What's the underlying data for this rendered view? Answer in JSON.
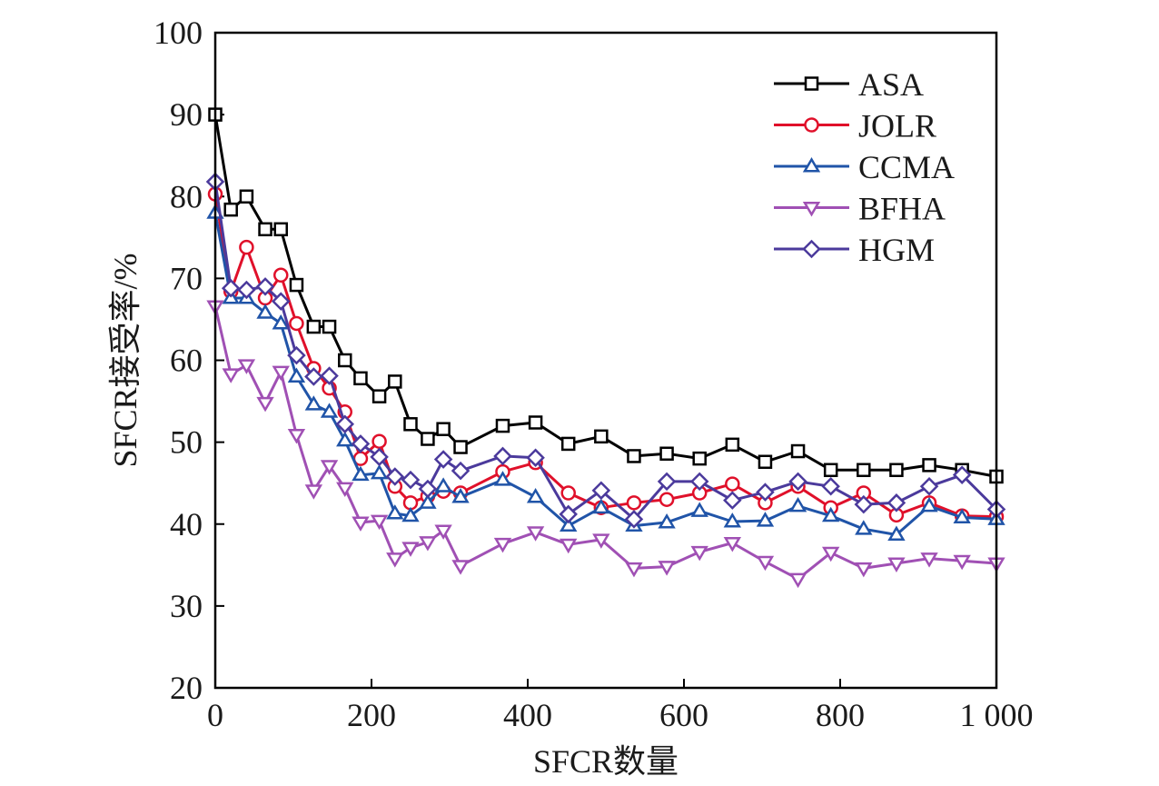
{
  "chart_data": {
    "type": "line",
    "title": "",
    "xlabel": "SFCR数量",
    "ylabel": "SFCR接受率/%",
    "xlim": [
      0,
      1000
    ],
    "ylim": [
      20,
      100
    ],
    "grid": false,
    "legend_position": "top-right",
    "x_ticks": [
      {
        "value": 0,
        "label": "0"
      },
      {
        "value": 200,
        "label": "200"
      },
      {
        "value": 400,
        "label": "400"
      },
      {
        "value": 600,
        "label": "600"
      },
      {
        "value": 800,
        "label": "800"
      },
      {
        "value": 1000,
        "label": "1 000"
      }
    ],
    "y_ticks": [
      {
        "value": 20,
        "label": "20"
      },
      {
        "value": 30,
        "label": "30"
      },
      {
        "value": 40,
        "label": "40"
      },
      {
        "value": 50,
        "label": "50"
      },
      {
        "value": 60,
        "label": "60"
      },
      {
        "value": 70,
        "label": "70"
      },
      {
        "value": 80,
        "label": "80"
      },
      {
        "value": 90,
        "label": "90"
      },
      {
        "value": 100,
        "label": "100"
      }
    ],
    "series": [
      {
        "name": "ASA",
        "color": "#000000",
        "marker": "square",
        "points": [
          [
            0,
            90
          ],
          [
            20,
            78.4
          ],
          [
            40,
            80
          ],
          [
            64,
            76
          ],
          [
            84,
            76
          ],
          [
            104,
            69.2
          ],
          [
            126,
            64.1
          ],
          [
            146,
            64.1
          ],
          [
            166,
            60
          ],
          [
            186,
            57.8
          ],
          [
            210,
            55.6
          ],
          [
            230,
            57.4
          ],
          [
            250,
            52.2
          ],
          [
            272,
            50.4
          ],
          [
            292,
            51.6
          ],
          [
            314,
            49.4
          ],
          [
            368,
            52
          ],
          [
            410,
            52.4
          ],
          [
            452,
            49.8
          ],
          [
            494,
            50.7
          ],
          [
            536,
            48.3
          ],
          [
            578,
            48.6
          ],
          [
            620,
            48
          ],
          [
            662,
            49.7
          ],
          [
            704,
            47.6
          ],
          [
            746,
            48.9
          ],
          [
            788,
            46.6
          ],
          [
            830,
            46.6
          ],
          [
            872,
            46.6
          ],
          [
            914,
            47.2
          ],
          [
            956,
            46.6
          ],
          [
            1000,
            45.8
          ]
        ]
      },
      {
        "name": "JOLR",
        "color": "#e0102a",
        "marker": "circle",
        "points": [
          [
            0,
            80.3
          ],
          [
            20,
            68.4
          ],
          [
            40,
            73.8
          ],
          [
            64,
            67.6
          ],
          [
            84,
            70.4
          ],
          [
            104,
            64.5
          ],
          [
            126,
            59
          ],
          [
            146,
            56.6
          ],
          [
            166,
            53.7
          ],
          [
            186,
            48
          ],
          [
            210,
            50.1
          ],
          [
            230,
            44.6
          ],
          [
            250,
            42.6
          ],
          [
            272,
            43.4
          ],
          [
            292,
            44
          ],
          [
            314,
            43.8
          ],
          [
            368,
            46.4
          ],
          [
            410,
            47.5
          ],
          [
            452,
            43.8
          ],
          [
            494,
            42
          ],
          [
            536,
            42.6
          ],
          [
            578,
            43
          ],
          [
            620,
            43.8
          ],
          [
            662,
            44.9
          ],
          [
            704,
            42.6
          ],
          [
            746,
            44.6
          ],
          [
            788,
            42
          ],
          [
            830,
            43.8
          ],
          [
            872,
            41.1
          ],
          [
            914,
            42.6
          ],
          [
            956,
            41
          ],
          [
            1000,
            40.9
          ]
        ]
      },
      {
        "name": "CCMA",
        "color": "#2054a8",
        "marker": "triangle-up",
        "points": [
          [
            0,
            78
          ],
          [
            20,
            67.6
          ],
          [
            40,
            67.6
          ],
          [
            64,
            65.8
          ],
          [
            84,
            64.5
          ],
          [
            104,
            58
          ],
          [
            126,
            54.6
          ],
          [
            146,
            53.7
          ],
          [
            166,
            50.2
          ],
          [
            186,
            46
          ],
          [
            210,
            46.2
          ],
          [
            230,
            41.3
          ],
          [
            250,
            41
          ],
          [
            272,
            42.6
          ],
          [
            292,
            44.6
          ],
          [
            314,
            43.3
          ],
          [
            368,
            45.4
          ],
          [
            410,
            43.3
          ],
          [
            452,
            39.8
          ],
          [
            494,
            42
          ],
          [
            536,
            39.8
          ],
          [
            578,
            40.2
          ],
          [
            620,
            41.6
          ],
          [
            662,
            40.3
          ],
          [
            704,
            40.4
          ],
          [
            746,
            42.2
          ],
          [
            788,
            41
          ],
          [
            830,
            39.4
          ],
          [
            872,
            38.7
          ],
          [
            914,
            42.2
          ],
          [
            956,
            40.8
          ],
          [
            1000,
            40.6
          ]
        ]
      },
      {
        "name": "BFHA",
        "color": "#a050b4",
        "marker": "triangle-down",
        "points": [
          [
            0,
            66.6
          ],
          [
            20,
            58.3
          ],
          [
            40,
            59.4
          ],
          [
            64,
            54.8
          ],
          [
            84,
            58.6
          ],
          [
            104,
            50.9
          ],
          [
            126,
            44.1
          ],
          [
            146,
            47.1
          ],
          [
            166,
            44.4
          ],
          [
            186,
            40.2
          ],
          [
            210,
            40.4
          ],
          [
            230,
            35.8
          ],
          [
            250,
            37.1
          ],
          [
            272,
            37.8
          ],
          [
            292,
            39.2
          ],
          [
            314,
            34.9
          ],
          [
            368,
            37.6
          ],
          [
            410,
            39
          ],
          [
            452,
            37.5
          ],
          [
            494,
            38.1
          ],
          [
            536,
            34.6
          ],
          [
            578,
            34.8
          ],
          [
            620,
            36.6
          ],
          [
            662,
            37.7
          ],
          [
            704,
            35.4
          ],
          [
            746,
            33.3
          ],
          [
            788,
            36.5
          ],
          [
            830,
            34.6
          ],
          [
            872,
            35.2
          ],
          [
            914,
            35.8
          ],
          [
            956,
            35.5
          ],
          [
            1000,
            35.2
          ]
        ]
      },
      {
        "name": "HGM",
        "color": "#4b3a9c",
        "marker": "diamond",
        "points": [
          [
            0,
            81.8
          ],
          [
            20,
            68.8
          ],
          [
            40,
            68.6
          ],
          [
            64,
            69
          ],
          [
            84,
            67.2
          ],
          [
            104,
            60.6
          ],
          [
            126,
            58
          ],
          [
            146,
            58.1
          ],
          [
            166,
            52.2
          ],
          [
            186,
            49.8
          ],
          [
            210,
            48.2
          ],
          [
            230,
            45.8
          ],
          [
            250,
            45.4
          ],
          [
            272,
            44.3
          ],
          [
            292,
            47.9
          ],
          [
            314,
            46.5
          ],
          [
            368,
            48.3
          ],
          [
            410,
            48.1
          ],
          [
            452,
            41.2
          ],
          [
            494,
            44.1
          ],
          [
            536,
            40.6
          ],
          [
            578,
            45.2
          ],
          [
            620,
            45.2
          ],
          [
            662,
            42.9
          ],
          [
            704,
            43.9
          ],
          [
            746,
            45.2
          ],
          [
            788,
            44.6
          ],
          [
            830,
            42.4
          ],
          [
            872,
            42.6
          ],
          [
            914,
            44.6
          ],
          [
            956,
            46
          ],
          [
            1000,
            41.8
          ]
        ]
      }
    ]
  }
}
